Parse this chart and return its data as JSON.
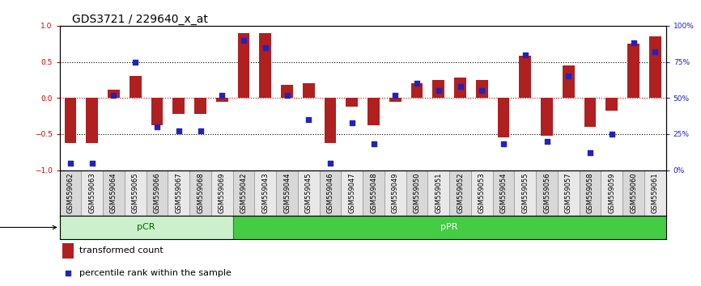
{
  "title": "GDS3721 / 229640_x_at",
  "samples": [
    "GSM559062",
    "GSM559063",
    "GSM559064",
    "GSM559065",
    "GSM559066",
    "GSM559067",
    "GSM559068",
    "GSM559069",
    "GSM559042",
    "GSM559043",
    "GSM559044",
    "GSM559045",
    "GSM559046",
    "GSM559047",
    "GSM559048",
    "GSM559049",
    "GSM559050",
    "GSM559051",
    "GSM559052",
    "GSM559053",
    "GSM559054",
    "GSM559055",
    "GSM559056",
    "GSM559057",
    "GSM559058",
    "GSM559059",
    "GSM559060",
    "GSM559061"
  ],
  "transformed_count": [
    -0.62,
    -0.62,
    0.12,
    0.3,
    -0.38,
    -0.22,
    -0.22,
    -0.05,
    0.9,
    0.9,
    0.18,
    0.2,
    -0.62,
    -0.12,
    -0.38,
    -0.05,
    0.2,
    0.25,
    0.28,
    0.25,
    -0.55,
    0.58,
    -0.52,
    0.45,
    -0.4,
    -0.18,
    0.75,
    0.85
  ],
  "percentile_rank": [
    5,
    5,
    52,
    75,
    30,
    27,
    27,
    52,
    90,
    85,
    52,
    35,
    5,
    33,
    18,
    52,
    60,
    55,
    58,
    55,
    18,
    80,
    20,
    65,
    12,
    25,
    88,
    82
  ],
  "pCR_count": 8,
  "pPR_count": 20,
  "bar_color": "#b02020",
  "dot_color": "#2222bb",
  "bg_color_pCR": "#ccf0cc",
  "bg_color_pPR": "#44cc44",
  "ylim": [
    -1,
    1
  ],
  "yticks": [
    -1,
    -0.5,
    0,
    0.5,
    1
  ],
  "right_yticks": [
    0,
    25,
    50,
    75,
    100
  ],
  "right_yticklabels": [
    "0%",
    "25%",
    "50%",
    "75%",
    "100%"
  ],
  "title_fontsize": 10,
  "tick_fontsize": 6.5,
  "label_fontsize": 8,
  "legend_fontsize": 8,
  "bar_width": 0.55,
  "dot_size": 18
}
